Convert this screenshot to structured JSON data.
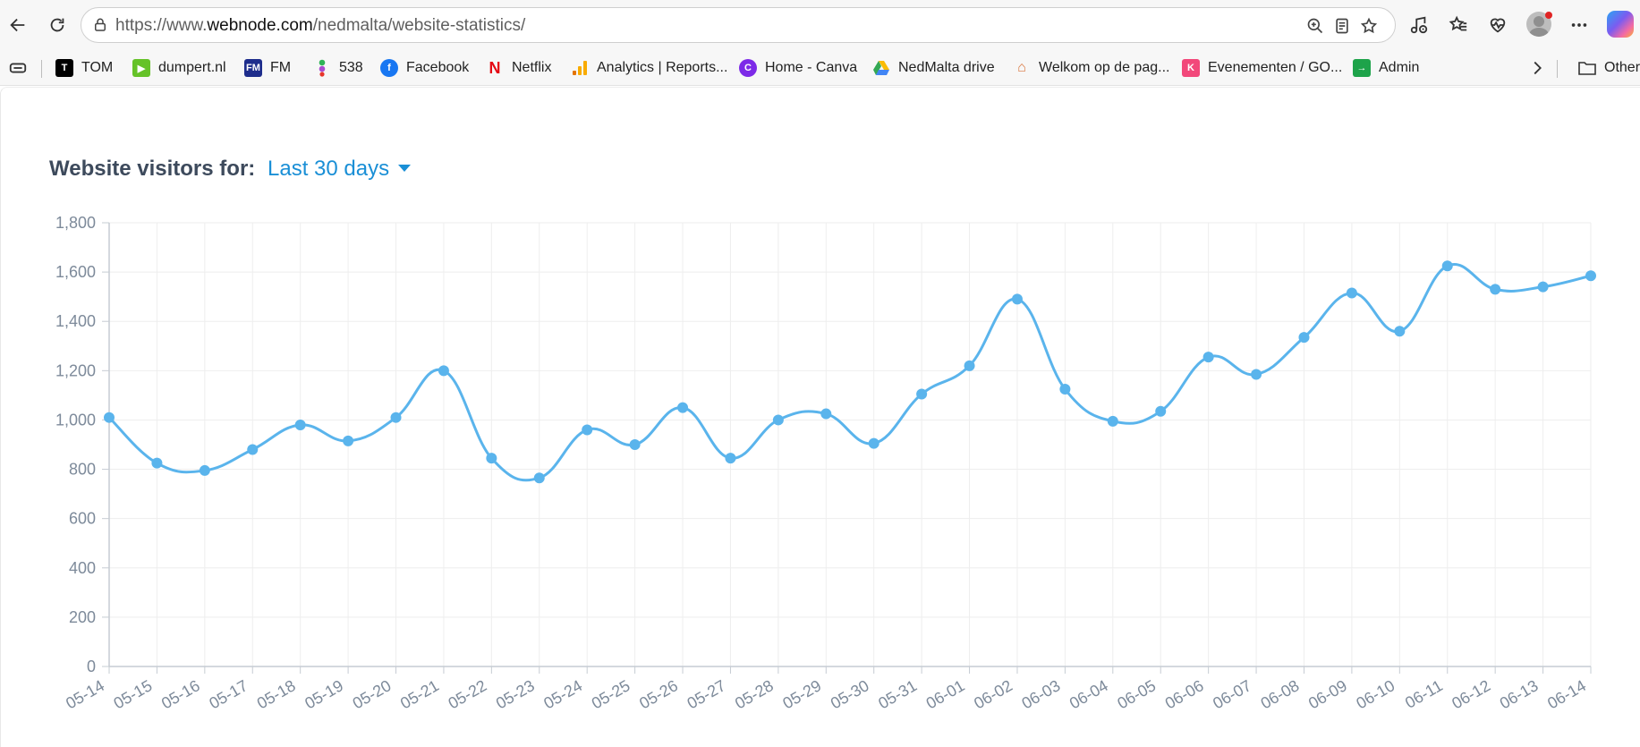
{
  "browser": {
    "url_prefix": "https://www.",
    "url_domain": "webnode.com",
    "url_path": "/nedmalta/website-statistics/",
    "bookmarks": [
      {
        "label": "TOM",
        "icon": "tom-icon",
        "color": "#000000"
      },
      {
        "label": "dumpert.nl",
        "icon": "dumpert-icon",
        "color": "#65c228"
      },
      {
        "label": "FM",
        "icon": "fm-icon",
        "color": "#1e2d8c"
      },
      {
        "label": "538",
        "icon": "538-icon",
        "color": "#a94bd1"
      },
      {
        "label": "Facebook",
        "icon": "facebook-icon",
        "color": "#1877f2"
      },
      {
        "label": "Netflix",
        "icon": "netflix-icon",
        "color": "#e50914"
      },
      {
        "label": "Analytics | Reports...",
        "icon": "analytics-icon",
        "color": "#f9ab00"
      },
      {
        "label": "Home - Canva",
        "icon": "canva-icon",
        "color": "#7d2ae8"
      },
      {
        "label": "NedMalta drive",
        "icon": "drive-icon",
        "color": "#34a853"
      },
      {
        "label": "Welkom op de pag...",
        "icon": "welkom-icon",
        "color": "#d9733a"
      },
      {
        "label": "Evenementen / GO...",
        "icon": "evenementen-icon",
        "color": "#f2487a"
      },
      {
        "label": "Admin",
        "icon": "admin-icon",
        "color": "#1ea34a"
      }
    ],
    "other_favorites": "Other"
  },
  "page": {
    "heading": "Website visitors for:",
    "period": "Last 30 days"
  },
  "chart_data": {
    "type": "line",
    "title": "",
    "xlabel": "",
    "ylabel": "",
    "ylim": [
      0,
      1800
    ],
    "yticks": [
      0,
      200,
      400,
      600,
      800,
      1000,
      1200,
      1400,
      1600,
      1800
    ],
    "ytick_labels": [
      "0",
      "200",
      "400",
      "600",
      "800",
      "1,000",
      "1,200",
      "1,400",
      "1,600",
      "1,800"
    ],
    "grid": true,
    "color": "#5ab4ec",
    "x": [
      "05-14",
      "05-15",
      "05-16",
      "05-17",
      "05-18",
      "05-19",
      "05-20",
      "05-21",
      "05-22",
      "05-23",
      "05-24",
      "05-25",
      "05-26",
      "05-27",
      "05-28",
      "05-29",
      "05-30",
      "05-31",
      "06-01",
      "06-02",
      "06-03",
      "06-04",
      "06-05",
      "06-06",
      "06-07",
      "06-08",
      "06-09",
      "06-10",
      "06-11",
      "06-12",
      "06-13",
      "06-14"
    ],
    "series": [
      {
        "values": [
          1010,
          825,
          795,
          880,
          980,
          915,
          1010,
          1200,
          845,
          765,
          960,
          900,
          1050,
          845,
          1000,
          1025,
          905,
          1105,
          1220,
          1490,
          1125,
          995,
          1035,
          1255,
          1185,
          1335,
          1515,
          1360,
          1625,
          1530,
          1540,
          1585
        ]
      }
    ]
  }
}
